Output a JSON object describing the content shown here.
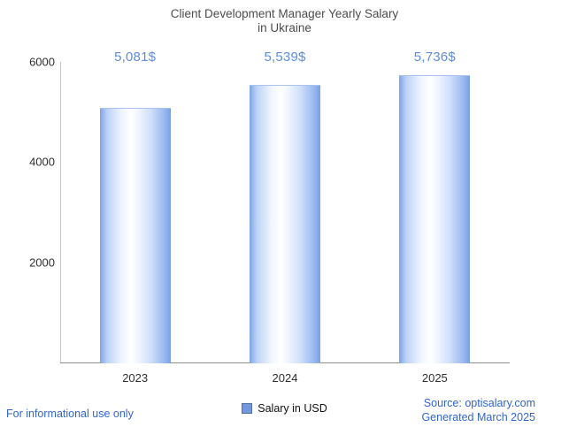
{
  "title": {
    "line1": "Client Development Manager Yearly Salary",
    "line2": "in Ukraine"
  },
  "chart_data": {
    "type": "bar",
    "title": "Client Development Manager Yearly Salary in Ukraine",
    "categories": [
      "2023",
      "2024",
      "2025"
    ],
    "values": [
      5081,
      5539,
      5736
    ],
    "value_labels": [
      "5,081$",
      "5,539$",
      "5,736$"
    ],
    "xlabel": "",
    "ylabel": "",
    "ylim": [
      0,
      6000
    ],
    "yticks": [
      2000,
      4000,
      6000
    ],
    "grid": false,
    "legend_position": "bottom",
    "bar_color_base": "#7fa3e8",
    "bar_color_highlight": "#ffffff",
    "value_label_color": "#5e8cdb"
  },
  "legend": {
    "label": "Salary in USD",
    "swatch_color": "#7296e0"
  },
  "footer": {
    "left": "For informational use only",
    "source": "Source: optisalary.com",
    "generated": "Generated March 2025",
    "link_color": "#3366cc"
  }
}
